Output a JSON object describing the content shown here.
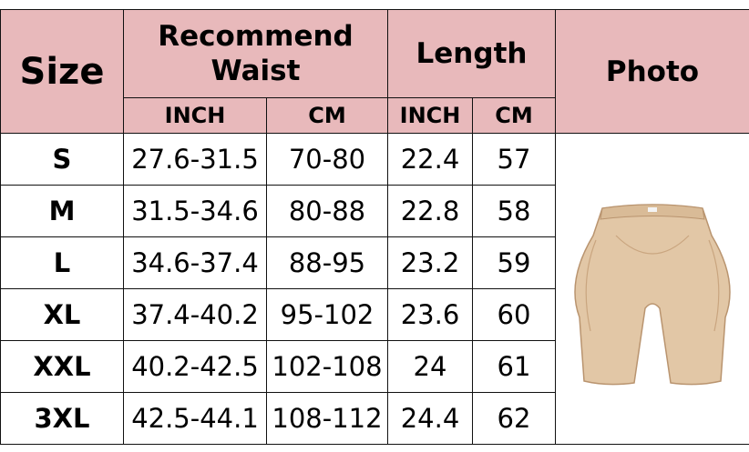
{
  "header": {
    "size": "Size",
    "waist": "Recommend Waist",
    "length": "Length",
    "photo": "Photo",
    "inch": "INCH",
    "cm": "CM"
  },
  "rows": [
    {
      "size": "S",
      "waist_inch": "27.6-31.5",
      "waist_cm": "70-80",
      "length_inch": "22.4",
      "length_cm": "57"
    },
    {
      "size": "M",
      "waist_inch": "31.5-34.6",
      "waist_cm": "80-88",
      "length_inch": "22.8",
      "length_cm": "58"
    },
    {
      "size": "L",
      "waist_inch": "34.6-37.4",
      "waist_cm": "88-95",
      "length_inch": "23.2",
      "length_cm": "59"
    },
    {
      "size": "XL",
      "waist_inch": "37.4-40.2",
      "waist_cm": "95-102",
      "length_inch": "23.6",
      "length_cm": "60"
    },
    {
      "size": "XXL",
      "waist_inch": "40.2-42.5",
      "waist_cm": "102-108",
      "length_inch": "24",
      "length_cm": "61"
    },
    {
      "size": "3XL",
      "waist_inch": "42.5-44.1",
      "waist_cm": "108-112",
      "length_inch": "24.4",
      "length_cm": "62"
    }
  ],
  "colors": {
    "header_bg": "#e8b9bb",
    "product": "#e2c7a6"
  },
  "photo_icon": "padded-shorts-product-image"
}
